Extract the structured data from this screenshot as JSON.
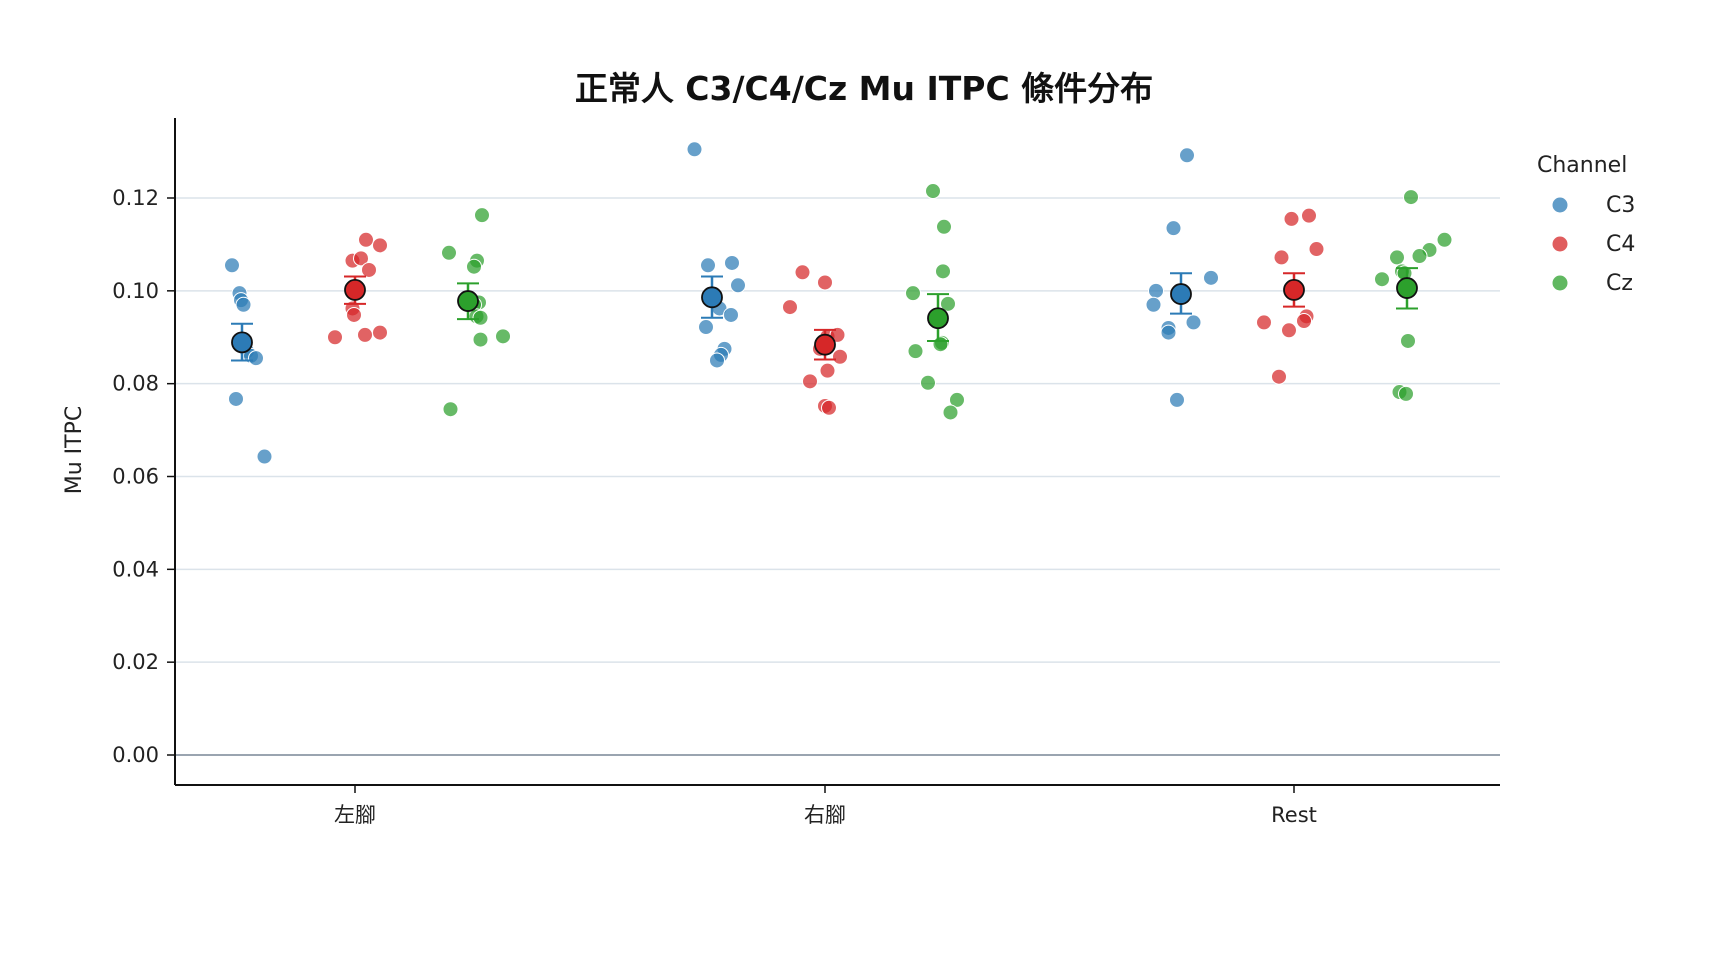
{
  "chart_data": {
    "type": "scatter",
    "title": "正常人 C3/C4/Cz Mu ITPC 條件分布",
    "xlabel": "",
    "ylabel": "Mu ITPC",
    "categories": [
      "左腳",
      "右腳",
      "Rest"
    ],
    "ylim": [
      -0.006,
      0.137
    ],
    "yticks": [
      "0.00",
      "0.02",
      "0.04",
      "0.06",
      "0.08",
      "0.10",
      "0.12"
    ],
    "grid": "horizontal",
    "legend": {
      "title": "Channel",
      "position": "right"
    },
    "series": [
      {
        "name": "C3",
        "color": "#2c7bb6",
        "points": [
          [
            [
              -0.02,
              0.1055
            ],
            [
              -0.005,
              0.0995
            ],
            [
              -0.002,
              0.098
            ],
            [
              0.003,
              0.097
            ],
            [
              0.01,
              0.087
            ],
            [
              0.018,
              0.086
            ],
            [
              0.028,
              0.0855
            ],
            [
              -0.012,
              0.0767
            ],
            [
              0.045,
              0.0643
            ]
          ],
          [
            [
              -0.035,
              0.1305
            ],
            [
              -0.008,
              0.1055
            ],
            [
              0.04,
              0.106
            ],
            [
              0.052,
              0.1012
            ],
            [
              0.015,
              0.0962
            ],
            [
              0.038,
              0.0948
            ],
            [
              -0.012,
              0.0922
            ],
            [
              0.025,
              0.0875
            ],
            [
              0.018,
              0.0862
            ],
            [
              0.01,
              0.085
            ]
          ],
          [
            [
              0.012,
              0.1292
            ],
            [
              -0.015,
              0.1135
            ],
            [
              0.06,
              0.1028
            ],
            [
              -0.05,
              0.1
            ],
            [
              -0.055,
              0.097
            ],
            [
              -0.025,
              0.092
            ],
            [
              -0.025,
              0.091
            ],
            [
              0.025,
              0.0932
            ],
            [
              -0.008,
              0.0765
            ]
          ]
        ],
        "mean": [
          0.0889,
          0.0986,
          0.0993
        ],
        "ci": [
          [
            0.085,
            0.0929
          ],
          [
            0.0942,
            0.1031
          ],
          [
            0.0951,
            0.1038
          ]
        ]
      },
      {
        "name": "C4",
        "color": "#d62728",
        "points": [
          [
            [
              0.022,
              0.111
            ],
            [
              0.05,
              0.1098
            ],
            [
              -0.005,
              0.1065
            ],
            [
              0.012,
              0.107
            ],
            [
              0.028,
              0.1045
            ],
            [
              -0.005,
              0.0962
            ],
            [
              -0.002,
              0.0948
            ],
            [
              0.02,
              0.0905
            ],
            [
              -0.04,
              0.09
            ],
            [
              0.05,
              0.091
            ]
          ],
          [
            [
              -0.045,
              0.104
            ],
            [
              0.0,
              0.1018
            ],
            [
              -0.07,
              0.0965
            ],
            [
              0.005,
              0.0902
            ],
            [
              0.025,
              0.0905
            ],
            [
              -0.01,
              0.0875
            ],
            [
              0.03,
              0.0858
            ],
            [
              0.005,
              0.0828
            ],
            [
              -0.03,
              0.0805
            ],
            [
              0.0,
              0.0752
            ],
            [
              0.008,
              0.0748
            ]
          ],
          [
            [
              -0.005,
              0.1155
            ],
            [
              0.03,
              0.1162
            ],
            [
              0.045,
              0.109
            ],
            [
              -0.025,
              0.1072
            ],
            [
              0.0,
              0.0995
            ],
            [
              0.025,
              0.0945
            ],
            [
              0.02,
              0.0935
            ],
            [
              -0.06,
              0.0932
            ],
            [
              -0.01,
              0.0915
            ],
            [
              -0.03,
              0.0815
            ]
          ]
        ],
        "mean": [
          0.1002,
          0.0884,
          0.1002
        ],
        "ci": [
          [
            0.0972,
            0.1031
          ],
          [
            0.0852,
            0.0916
          ],
          [
            0.0966,
            0.1038
          ]
        ]
      },
      {
        "name": "Cz",
        "color": "#2ca02c",
        "points": [
          [
            [
              0.028,
              0.1163
            ],
            [
              -0.038,
              0.1082
            ],
            [
              0.018,
              0.1065
            ],
            [
              0.012,
              0.1052
            ],
            [
              0.022,
              0.0975
            ],
            [
              0.012,
              0.097
            ],
            [
              0.017,
              0.0945
            ],
            [
              0.025,
              0.0942
            ],
            [
              0.025,
              0.0895
            ],
            [
              0.07,
              0.0902
            ],
            [
              -0.035,
              0.0745
            ]
          ],
          [
            [
              -0.01,
              0.1215
            ],
            [
              0.012,
              0.1138
            ],
            [
              0.01,
              0.1042
            ],
            [
              -0.05,
              0.0995
            ],
            [
              0.02,
              0.0972
            ],
            [
              0.008,
              0.0888
            ],
            [
              0.005,
              0.0885
            ],
            [
              -0.045,
              0.087
            ],
            [
              -0.02,
              0.0802
            ],
            [
              0.038,
              0.0765
            ],
            [
              0.025,
              0.0738
            ]
          ],
          [
            [
              0.008,
              0.1202
            ],
            [
              0.075,
              0.111
            ],
            [
              0.045,
              0.1088
            ],
            [
              0.025,
              0.1075
            ],
            [
              -0.02,
              0.1072
            ],
            [
              -0.01,
              0.1042
            ],
            [
              -0.005,
              0.1038
            ],
            [
              -0.05,
              0.1025
            ],
            [
              0.002,
              0.0892
            ],
            [
              -0.015,
              0.0782
            ],
            [
              -0.002,
              0.0778
            ]
          ]
        ],
        "mean": [
          0.0978,
          0.0941,
          0.1006
        ],
        "ci": [
          [
            0.0939,
            0.1016
          ],
          [
            0.0892,
            0.0993
          ],
          [
            0.0962,
            0.1049
          ]
        ]
      }
    ]
  }
}
